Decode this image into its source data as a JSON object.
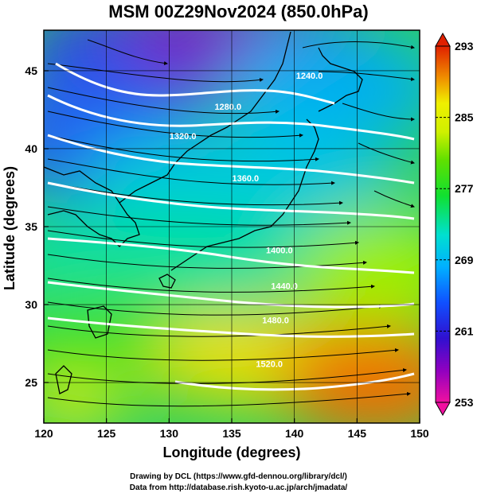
{
  "title": "MSM 00Z29Nov2024 (850.0hPa)",
  "x_axis": {
    "label": "Longitude (degrees)",
    "ticks": [
      "120",
      "125",
      "130",
      "135",
      "140",
      "145",
      "150"
    ],
    "range": [
      120,
      150
    ]
  },
  "y_axis": {
    "label": "Latitude  (degrees)",
    "ticks": [
      "25",
      "30",
      "35",
      "40",
      "45"
    ],
    "range": [
      22.4,
      47.6
    ]
  },
  "colorbar": {
    "ticks": [
      "293",
      "285",
      "277",
      "269",
      "261",
      "253"
    ],
    "range": [
      253,
      293
    ],
    "colors": [
      "#f01090",
      "#8000c0",
      "#2020d0",
      "#00a0ff",
      "#00e0c0",
      "#20e020",
      "#a0f000",
      "#f0f000",
      "#f08000",
      "#e02000"
    ]
  },
  "contours": [
    {
      "label": "1240.0",
      "lon": 141.2,
      "lat": 44.5
    },
    {
      "label": "1280.0",
      "lon": 134.7,
      "lat": 42.5
    },
    {
      "label": "1320.0",
      "lon": 131.1,
      "lat": 40.6
    },
    {
      "label": "1360.0",
      "lon": 136.1,
      "lat": 37.9
    },
    {
      "label": "1400.0",
      "lon": 138.8,
      "lat": 33.3
    },
    {
      "label": "1440.0",
      "lon": 139.2,
      "lat": 31.0
    },
    {
      "label": "1480.0",
      "lon": 138.5,
      "lat": 28.8
    },
    {
      "label": "1520.0",
      "lon": 138.0,
      "lat": 26.0
    }
  ],
  "footer": {
    "line1": "Drawing by DCL (https://www.gfd-dennou.org/library/dcl/)",
    "line2": "Data from http://database.rish.kyoto-u.ac.jp/arch/jmadata/"
  }
}
